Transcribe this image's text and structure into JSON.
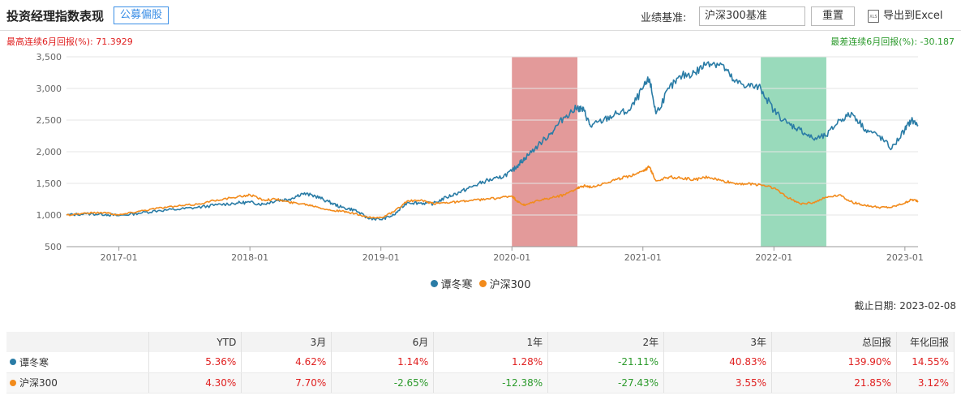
{
  "header": {
    "title": "投资经理指数表现",
    "tag": "公募偏股",
    "benchmark_label": "业绩基准:",
    "benchmark_value": "沪深300基准",
    "reset_label": "重置",
    "export_label": "导出到Excel",
    "export_icon": "excel-file-icon",
    "export_icon_text": "XLS"
  },
  "stats": {
    "best": "最高连续6月回报(%):  71.3929",
    "worst": "最差连续6月回报(%):  -30.187"
  },
  "deadline": "截止日期:  2023-02-08",
  "chart_data": {
    "type": "line",
    "x_ticks": [
      "2017-01",
      "2018-01",
      "2019-01",
      "2020-01",
      "2021-01",
      "2022-01",
      "2023-01"
    ],
    "x_tick_values": [
      2017.0,
      2018.0,
      2019.0,
      2020.0,
      2021.0,
      2022.0,
      2023.0
    ],
    "xlim": [
      2016.6,
      2023.1
    ],
    "y_ticks": [
      "500",
      "1,000",
      "1,500",
      "2,000",
      "2,500",
      "3,000",
      "3,500"
    ],
    "ylim": [
      500,
      3500
    ],
    "grid": "horizontal",
    "highlight_bands": [
      {
        "x": [
          2020.0,
          2020.5
        ],
        "color": "#e39a9a"
      },
      {
        "x": [
          2021.9,
          2022.4
        ],
        "color": "#99dabb"
      }
    ],
    "series": [
      {
        "name": "谭冬寒",
        "color": "#2a7ca6",
        "x": [
          2016.6,
          2016.75,
          2016.9,
          2017.0,
          2017.15,
          2017.3,
          2017.45,
          2017.6,
          2017.75,
          2017.9,
          2018.0,
          2018.1,
          2018.2,
          2018.3,
          2018.4,
          2018.5,
          2018.6,
          2018.7,
          2018.8,
          2018.9,
          2019.0,
          2019.1,
          2019.2,
          2019.3,
          2019.4,
          2019.5,
          2019.6,
          2019.7,
          2019.8,
          2019.9,
          2020.0,
          2020.05,
          2020.1,
          2020.2,
          2020.3,
          2020.4,
          2020.5,
          2020.55,
          2020.6,
          2020.7,
          2020.8,
          2020.9,
          2021.0,
          2021.05,
          2021.1,
          2021.2,
          2021.3,
          2021.4,
          2021.5,
          2021.6,
          2021.7,
          2021.8,
          2021.9,
          2022.0,
          2022.1,
          2022.2,
          2022.3,
          2022.4,
          2022.5,
          2022.6,
          2022.7,
          2022.8,
          2022.9,
          2023.0,
          2023.05,
          2023.1
        ],
        "y": [
          1000,
          1020,
          1010,
          990,
          1030,
          1070,
          1090,
          1120,
          1160,
          1190,
          1200,
          1170,
          1230,
          1250,
          1340,
          1300,
          1210,
          1120,
          1080,
          950,
          930,
          1000,
          1200,
          1190,
          1180,
          1280,
          1360,
          1450,
          1540,
          1580,
          1690,
          1800,
          1900,
          2100,
          2300,
          2550,
          2700,
          2650,
          2400,
          2500,
          2600,
          2650,
          3000,
          3150,
          2600,
          3000,
          3200,
          3250,
          3420,
          3380,
          3100,
          3050,
          3000,
          2650,
          2450,
          2350,
          2200,
          2250,
          2500,
          2600,
          2350,
          2250,
          2050,
          2350,
          2500,
          2420
        ]
      },
      {
        "name": "沪深300",
        "color": "#f28b1c",
        "x": [
          2016.6,
          2016.75,
          2016.9,
          2017.0,
          2017.15,
          2017.3,
          2017.45,
          2017.6,
          2017.75,
          2017.9,
          2018.0,
          2018.1,
          2018.2,
          2018.3,
          2018.4,
          2018.5,
          2018.6,
          2018.7,
          2018.8,
          2018.9,
          2019.0,
          2019.1,
          2019.2,
          2019.3,
          2019.4,
          2019.5,
          2019.6,
          2019.7,
          2019.8,
          2019.9,
          2020.0,
          2020.05,
          2020.1,
          2020.2,
          2020.3,
          2020.4,
          2020.5,
          2020.55,
          2020.6,
          2020.7,
          2020.8,
          2020.9,
          2021.0,
          2021.05,
          2021.1,
          2021.2,
          2021.3,
          2021.4,
          2021.5,
          2021.6,
          2021.7,
          2021.8,
          2021.9,
          2022.0,
          2022.1,
          2022.2,
          2022.3,
          2022.4,
          2022.5,
          2022.6,
          2022.7,
          2022.8,
          2022.9,
          2023.0,
          2023.05,
          2023.1
        ],
        "y": [
          1000,
          1030,
          1040,
          1000,
          1060,
          1110,
          1140,
          1170,
          1240,
          1280,
          1320,
          1240,
          1250,
          1200,
          1180,
          1140,
          1080,
          1060,
          1020,
          960,
          960,
          1050,
          1220,
          1230,
          1180,
          1200,
          1210,
          1230,
          1250,
          1270,
          1300,
          1200,
          1150,
          1230,
          1270,
          1320,
          1430,
          1460,
          1440,
          1500,
          1560,
          1620,
          1700,
          1760,
          1540,
          1600,
          1580,
          1560,
          1600,
          1540,
          1500,
          1490,
          1480,
          1430,
          1280,
          1180,
          1200,
          1280,
          1320,
          1200,
          1150,
          1120,
          1120,
          1190,
          1240,
          1220
        ]
      }
    ]
  },
  "table": {
    "headers": [
      "",
      "YTD",
      "3月",
      "6月",
      "1年",
      "2年",
      "3年",
      "总回报",
      "年化回报"
    ],
    "rows": [
      {
        "name": "谭冬寒",
        "color": "#2a7ca6",
        "values": [
          "5.36%",
          "4.62%",
          "1.14%",
          "1.28%",
          "-21.11%",
          "40.83%",
          "139.90%",
          "14.55%"
        ]
      },
      {
        "name": "沪深300",
        "color": "#f28b1c",
        "values": [
          "4.30%",
          "7.70%",
          "-2.65%",
          "-12.38%",
          "-27.43%",
          "3.55%",
          "21.85%",
          "3.12%"
        ]
      }
    ]
  }
}
